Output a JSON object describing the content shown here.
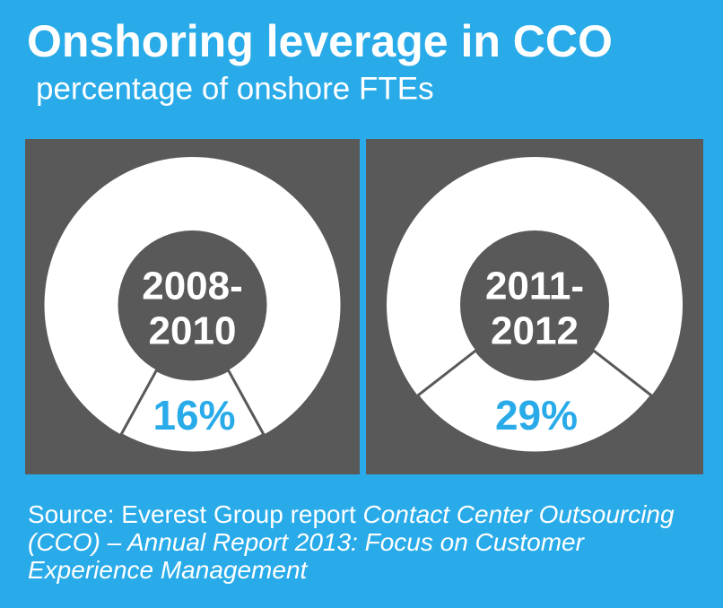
{
  "title": "Onshoring leverage in CCO",
  "subtitle": "percentage of onshore FTEs",
  "chart_data": [
    {
      "type": "donut",
      "center_label": [
        "2008-",
        "2010"
      ],
      "values": [
        16
      ],
      "value_labels": [
        "16%"
      ],
      "color": "#ffffff"
    },
    {
      "type": "donut",
      "center_label": [
        "2011-",
        "2012"
      ],
      "values": [
        29
      ],
      "value_labels": [
        "29%"
      ],
      "color": "#ffffff"
    }
  ],
  "source": {
    "prefix": "Source: Everest Group report ",
    "report_title": "Contact Center Outsourcing (CCO) – Annual Report 2013: Focus on Customer Experience Management"
  }
}
